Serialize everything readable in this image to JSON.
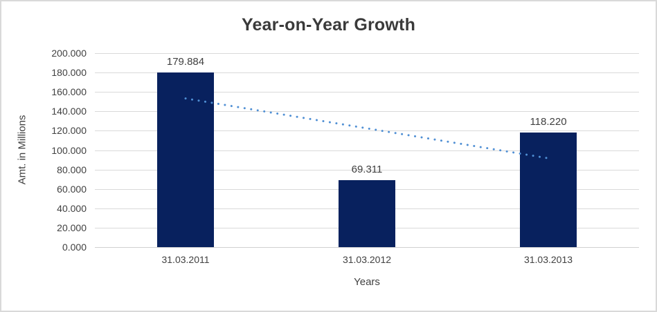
{
  "chart_data": {
    "type": "bar",
    "title": "Year-on-Year Growth",
    "xlabel": "Years",
    "ylabel": "Amt. in Millions",
    "categories": [
      "31.03.2011",
      "31.03.2012",
      "31.03.2013"
    ],
    "values": [
      179.884,
      69.311,
      118.22
    ],
    "value_labels": [
      "179.884",
      "69.311",
      "118.220"
    ],
    "ylim": [
      0,
      200
    ],
    "ytick_step": 20,
    "ytick_labels": [
      "200.000",
      "180.000",
      "160.000",
      "140.000",
      "120.000",
      "100.000",
      "80.000",
      "60.000",
      "40.000",
      "20.000",
      "0.000"
    ],
    "grid": true,
    "legend": "none",
    "trendline": {
      "type": "linear",
      "style": "dotted",
      "endpoint_values": [
        153.3,
        91.6
      ]
    }
  },
  "colors": {
    "bar": "#08215e",
    "trendline": "#4f8fd4",
    "gridline": "#d9d9d9",
    "frame_border": "#d9d9d9",
    "text": "#404040",
    "title_text": "#3a3a3a",
    "background": "#ffffff"
  }
}
